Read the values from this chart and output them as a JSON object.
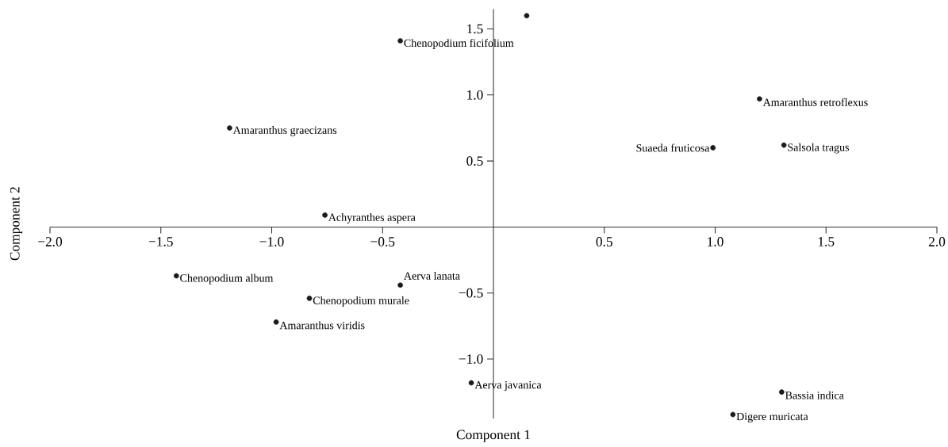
{
  "chart_data": {
    "type": "scatter",
    "xlabel": "Component 1",
    "ylabel": "Component 2",
    "x": [
      0.15,
      -0.42,
      1.2,
      -1.19,
      0.99,
      1.31,
      -0.76,
      -1.43,
      -0.42,
      -0.83,
      -0.98,
      -0.1,
      1.3,
      1.08
    ],
    "values": [
      1.6,
      1.41,
      0.97,
      0.75,
      0.6,
      0.62,
      0.09,
      -0.37,
      -0.44,
      -0.54,
      -0.72,
      -1.18,
      -1.25,
      -1.42
    ],
    "value_labels": [
      null,
      "Chenopodium ficifolium",
      "Amaranthus retroflexus",
      "Amaranthus graecizans",
      "Suaeda fruticosa",
      "Salsola tragus",
      "Achyranthes aspera",
      "Chenopodium album",
      "Aerva lanata",
      "Chenopodium murale",
      "Amaranthus viridis",
      "Aerva javanica",
      "Bassia indica",
      "Digere muricata"
    ],
    "color": "#1a1a1a",
    "marker": "circle",
    "grid": false,
    "xlim": [
      -2,
      2
    ],
    "ylim": [
      -1.45,
      1.65
    ],
    "xticks": [
      {
        "value": -2,
        "label": "−2.0"
      },
      {
        "value": -1.5,
        "label": "−1.5"
      },
      {
        "value": -1,
        "label": "−1.0"
      },
      {
        "value": -0.5,
        "label": "−0.5"
      },
      {
        "value": 0.5,
        "label": "0.5"
      },
      {
        "value": 1,
        "label": "1.0"
      },
      {
        "value": 1.5,
        "label": "1.5"
      },
      {
        "value": 2,
        "label": "2.0"
      }
    ],
    "yticks": [
      {
        "value": -1,
        "label": "−1.0"
      },
      {
        "value": -0.5,
        "label": "−0.5"
      },
      {
        "value": 0.5,
        "label": "0.5"
      },
      {
        "value": 1,
        "label": "1.0"
      },
      {
        "value": 1.5,
        "label": "1.5"
      }
    ]
  }
}
